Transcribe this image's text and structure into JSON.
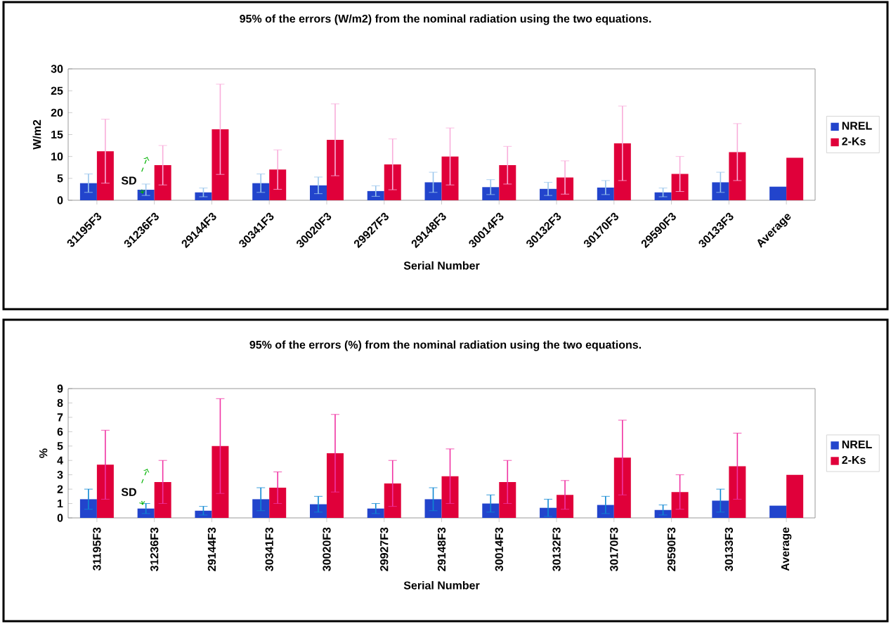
{
  "chart_data": [
    {
      "type": "bar",
      "title": "95% of the errors (W/m2) from the nominal radiation using the two equations.",
      "xlabel": "Serial Number",
      "ylabel": "W/m2",
      "categories": [
        "31195F3",
        "31236F3",
        "29144F3",
        "30341F3",
        "30020F3",
        "29927F3",
        "29148F3",
        "30014F3",
        "30132F3",
        "30170F3",
        "29590F3",
        "30133F3",
        "Average"
      ],
      "series": [
        {
          "name": "NREL",
          "color": "#2244cc",
          "values": [
            3.9,
            2.4,
            1.8,
            3.9,
            3.4,
            2.1,
            4.1,
            3.0,
            2.6,
            2.9,
            1.8,
            4.1,
            3.1
          ],
          "errors": [
            2.1,
            1.3,
            1.0,
            2.1,
            1.9,
            1.2,
            2.3,
            1.7,
            1.5,
            1.6,
            1.0,
            2.3,
            null
          ]
        },
        {
          "name": "2-Ks",
          "color": "#e0003a",
          "values": [
            11.2,
            8.0,
            16.2,
            7.0,
            13.8,
            8.2,
            10.0,
            8.0,
            5.2,
            13.0,
            6.0,
            11.0,
            9.7
          ],
          "errors": [
            7.3,
            4.5,
            10.3,
            4.5,
            8.2,
            5.8,
            6.5,
            4.3,
            3.8,
            8.5,
            4.0,
            6.5,
            null
          ]
        }
      ],
      "ylim": [
        0,
        30
      ],
      "yticks": [
        0,
        5,
        10,
        15,
        20,
        25,
        30
      ],
      "legend": "right",
      "annotations": [
        {
          "text": "SD",
          "x": "31236F3",
          "y": 4.5
        }
      ]
    },
    {
      "type": "bar",
      "title": "95% of the errors (%) from the nominal radiation using the two equations.",
      "xlabel": "Serial Number",
      "ylabel": "%",
      "categories": [
        "31195F3",
        "31236F3",
        "29144F3",
        "30341F3",
        "30020F3",
        "29927F3",
        "29148F3",
        "30014F3",
        "30132F3",
        "30170F3",
        "29590F3",
        "30133F3",
        "Average"
      ],
      "series": [
        {
          "name": "NREL",
          "color": "#2244cc",
          "values": [
            1.3,
            0.65,
            0.5,
            1.3,
            0.95,
            0.65,
            1.3,
            1.0,
            0.7,
            0.9,
            0.55,
            1.2,
            0.85
          ],
          "errors": [
            0.7,
            0.35,
            0.3,
            0.8,
            0.55,
            0.35,
            0.8,
            0.6,
            0.6,
            0.6,
            0.35,
            0.8,
            null
          ]
        },
        {
          "name": "2-Ks",
          "color": "#e0003a",
          "values": [
            3.7,
            2.5,
            5.0,
            2.1,
            4.5,
            2.4,
            2.9,
            2.5,
            1.6,
            4.2,
            1.8,
            3.6,
            3.0
          ],
          "errors": [
            2.4,
            1.5,
            3.3,
            1.1,
            2.7,
            1.6,
            1.9,
            1.5,
            1.0,
            2.6,
            1.2,
            2.3,
            null
          ]
        }
      ],
      "ylim": [
        0,
        9
      ],
      "yticks": [
        0,
        1,
        2,
        3,
        4,
        5,
        6,
        7,
        8,
        9
      ],
      "legend": "right",
      "annotations": [
        {
          "text": "SD",
          "x": "31236F3",
          "y": 1.8
        }
      ]
    }
  ]
}
